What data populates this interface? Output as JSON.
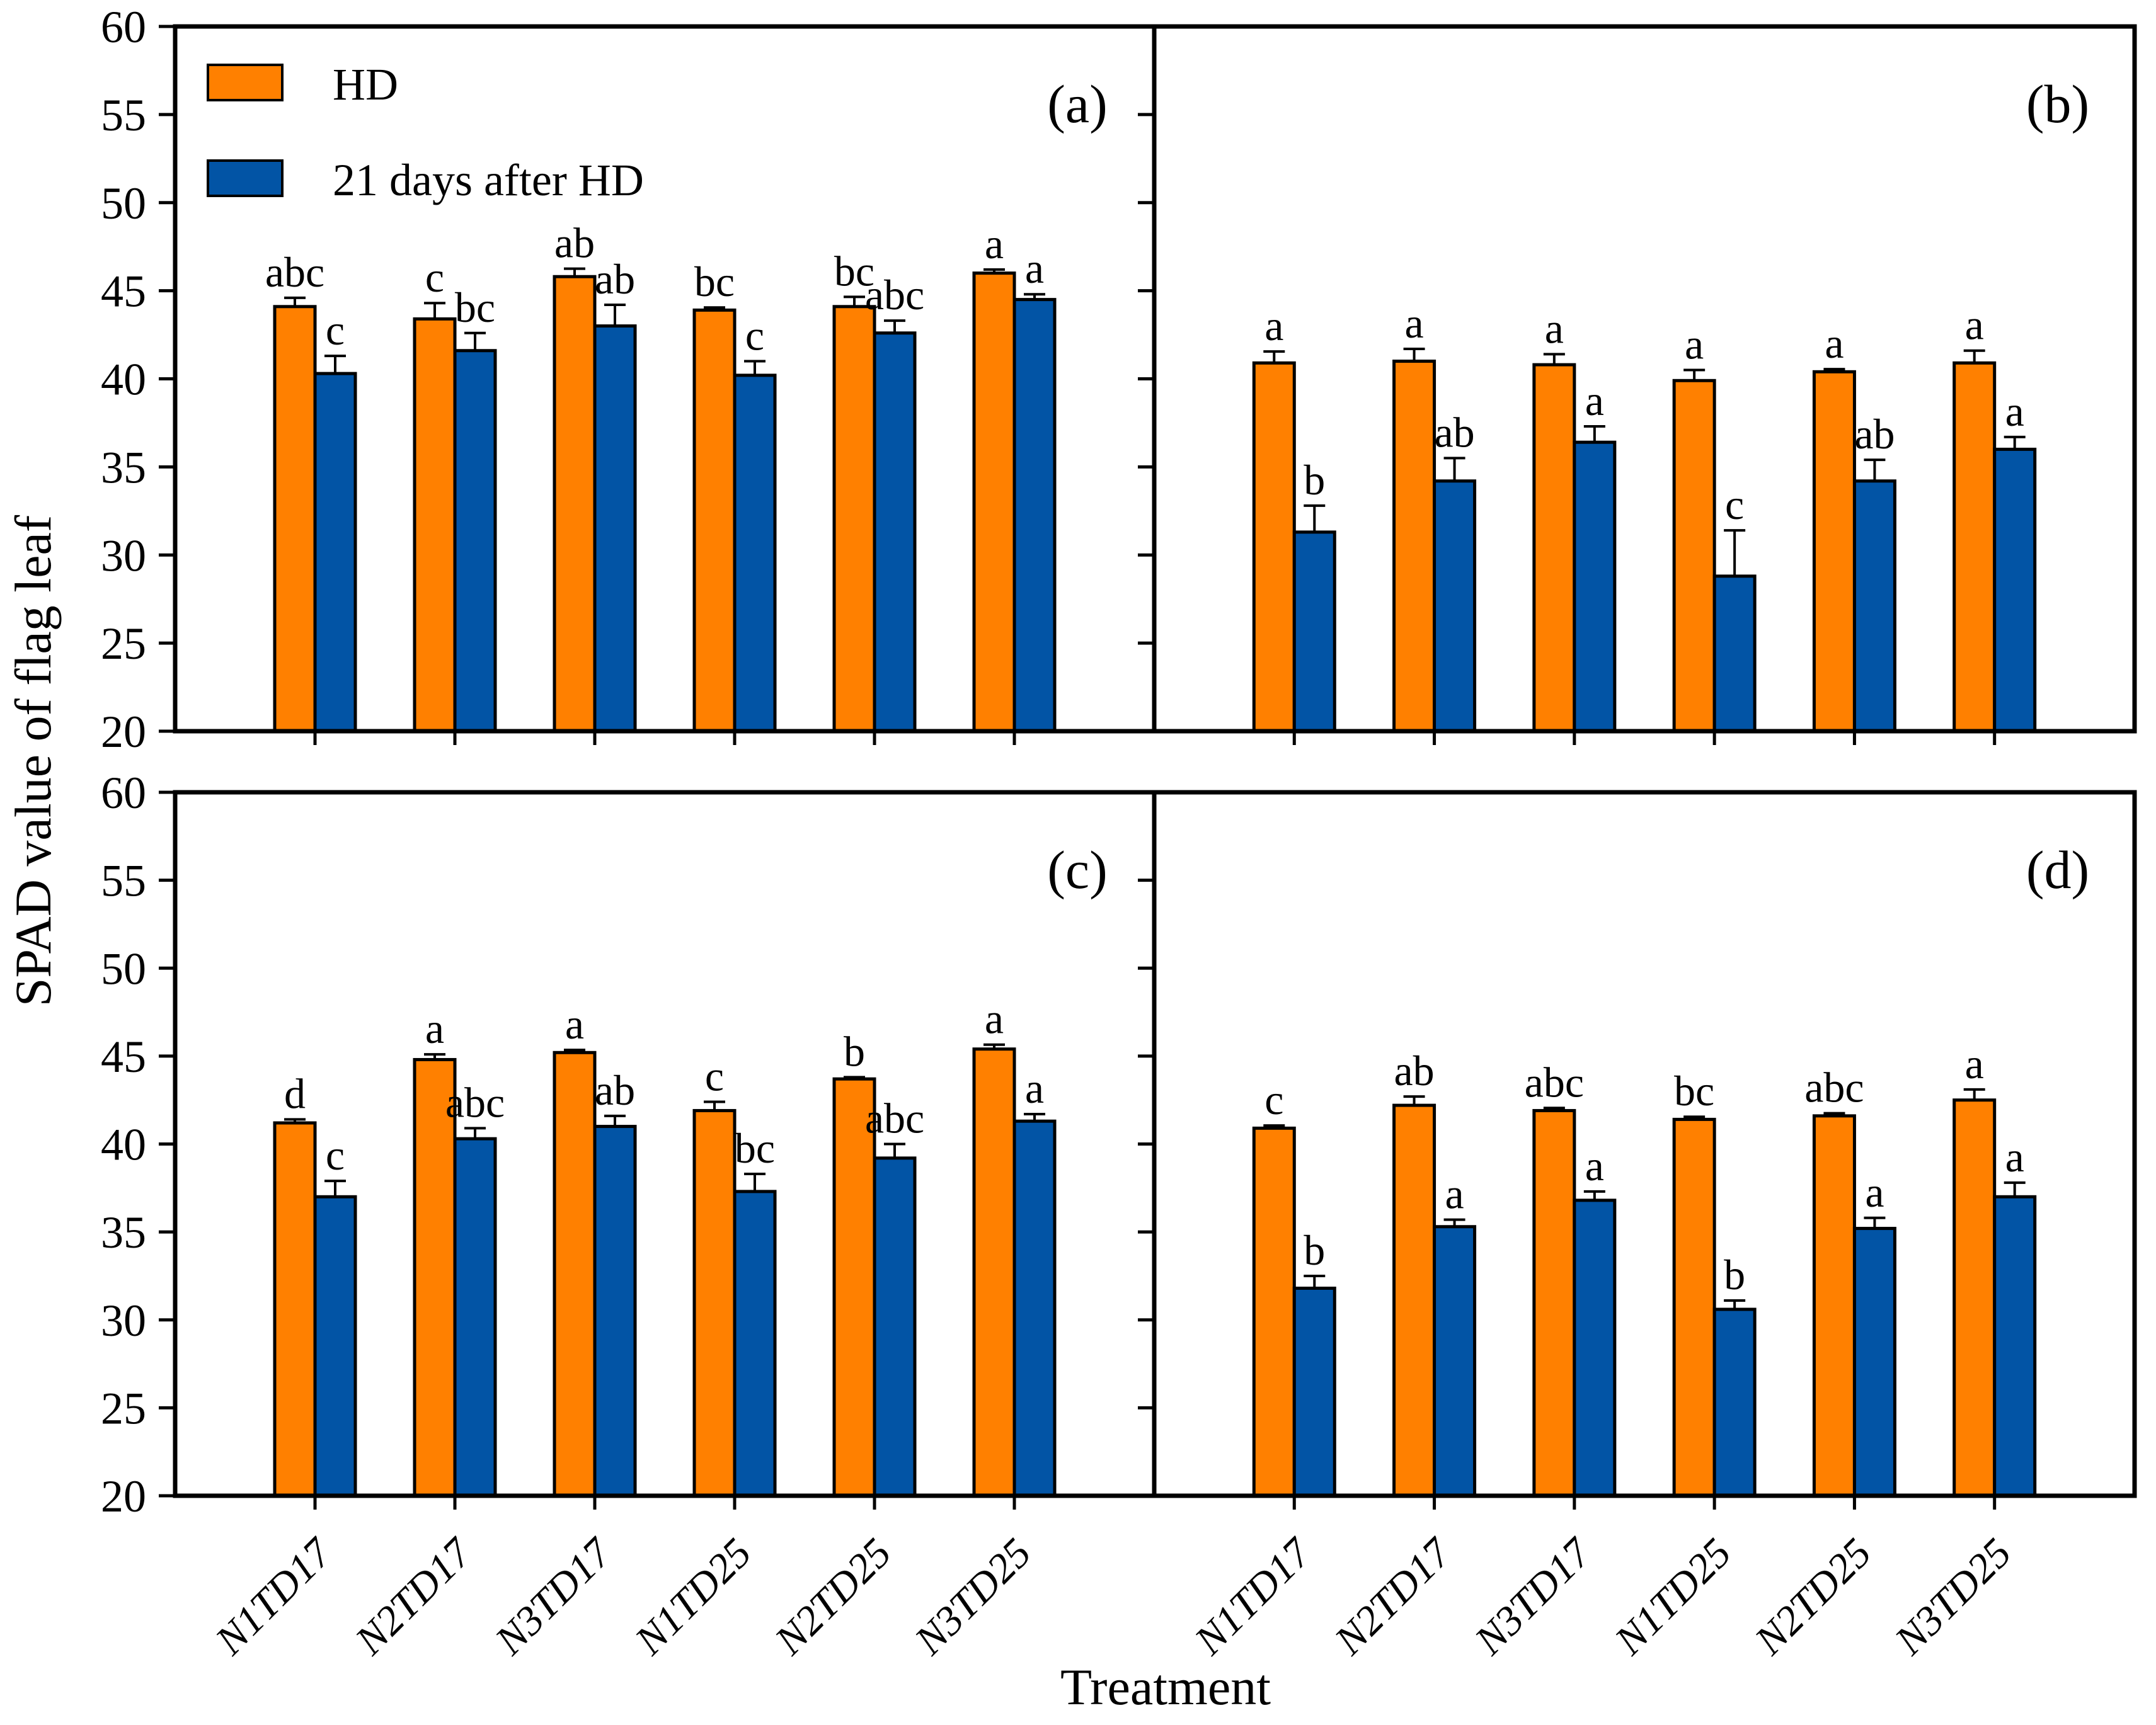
{
  "chart_data": {
    "type": "bar",
    "title": "",
    "xlabel": "Treatment",
    "ylabel": "SPAD value of flag leaf",
    "ylim": [
      20,
      60
    ],
    "yticks": [
      20,
      25,
      30,
      35,
      40,
      45,
      50,
      55,
      60
    ],
    "grid": "off",
    "categories": [
      "N1TD17",
      "N2TD17",
      "N3TD17",
      "N1TD25",
      "N2TD25",
      "N3TD25"
    ],
    "colors": {
      "hd": "#FF8000",
      "after_hd": "#0254A5",
      "outline": "#000000"
    },
    "legend": {
      "position": "top-left of panel (a)",
      "entries": [
        {
          "label": "HD",
          "color": "#FF8000"
        },
        {
          "label": "21 days after HD",
          "color": "#0254A5"
        }
      ]
    },
    "panels": [
      {
        "label": "(a)",
        "series": [
          {
            "name": "HD",
            "color": "#FF8000",
            "values": [
              44.1,
              43.4,
              45.8,
              43.9,
              44.1,
              46.0
            ],
            "errors": [
              0.5,
              0.9,
              0.45,
              0.15,
              0.55,
              0.2
            ],
            "letters": [
              "abc",
              "c",
              "ab",
              "bc",
              "bc",
              "a"
            ]
          },
          {
            "name": "21 days after HD",
            "color": "#0254A5",
            "values": [
              40.3,
              41.6,
              43.0,
              40.2,
              42.6,
              44.5
            ],
            "errors": [
              1.0,
              1.0,
              1.2,
              0.8,
              0.7,
              0.3
            ],
            "letters": [
              "c",
              "bc",
              "ab",
              "c",
              "abc",
              "a"
            ]
          }
        ]
      },
      {
        "label": "(b)",
        "series": [
          {
            "name": "HD",
            "color": "#FF8000",
            "values": [
              40.9,
              41.0,
              40.8,
              39.9,
              40.4,
              40.9
            ],
            "errors": [
              0.65,
              0.7,
              0.6,
              0.6,
              0.15,
              0.7
            ],
            "letters": [
              "a",
              "a",
              "a",
              "a",
              "a",
              "a"
            ]
          },
          {
            "name": "21 days after HD",
            "color": "#0254A5",
            "values": [
              31.3,
              34.2,
              36.4,
              28.8,
              34.2,
              36.0
            ],
            "errors": [
              1.5,
              1.3,
              0.9,
              2.6,
              1.2,
              0.7
            ],
            "letters": [
              "b",
              "ab",
              "a",
              "c",
              "ab",
              "a"
            ]
          }
        ]
      },
      {
        "label": "(c)",
        "series": [
          {
            "name": "HD",
            "color": "#FF8000",
            "values": [
              41.2,
              44.8,
              45.2,
              41.9,
              43.7,
              45.4
            ],
            "errors": [
              0.2,
              0.3,
              0.15,
              0.5,
              0.1,
              0.25
            ],
            "letters": [
              "d",
              "a",
              "a",
              "c",
              "b",
              "a"
            ]
          },
          {
            "name": "21 days after HD",
            "color": "#0254A5",
            "values": [
              37.0,
              40.3,
              41.0,
              37.3,
              39.2,
              41.3
            ],
            "errors": [
              0.9,
              0.6,
              0.6,
              1.0,
              0.8,
              0.4
            ],
            "letters": [
              "c",
              "abc",
              "ab",
              "bc",
              "abc",
              "a"
            ]
          }
        ]
      },
      {
        "label": "(d)",
        "series": [
          {
            "name": "HD",
            "color": "#FF8000",
            "values": [
              40.9,
              42.2,
              41.9,
              41.4,
              41.6,
              42.5
            ],
            "errors": [
              0.15,
              0.5,
              0.15,
              0.15,
              0.15,
              0.6
            ],
            "letters": [
              "c",
              "ab",
              "abc",
              "bc",
              "abc",
              "a"
            ]
          },
          {
            "name": "21 days after HD",
            "color": "#0254A5",
            "values": [
              31.8,
              35.3,
              36.8,
              30.6,
              35.2,
              37.0
            ],
            "errors": [
              0.7,
              0.4,
              0.5,
              0.5,
              0.6,
              0.8
            ],
            "letters": [
              "b",
              "a",
              "a",
              "b",
              "a",
              "a"
            ]
          }
        ]
      }
    ]
  }
}
